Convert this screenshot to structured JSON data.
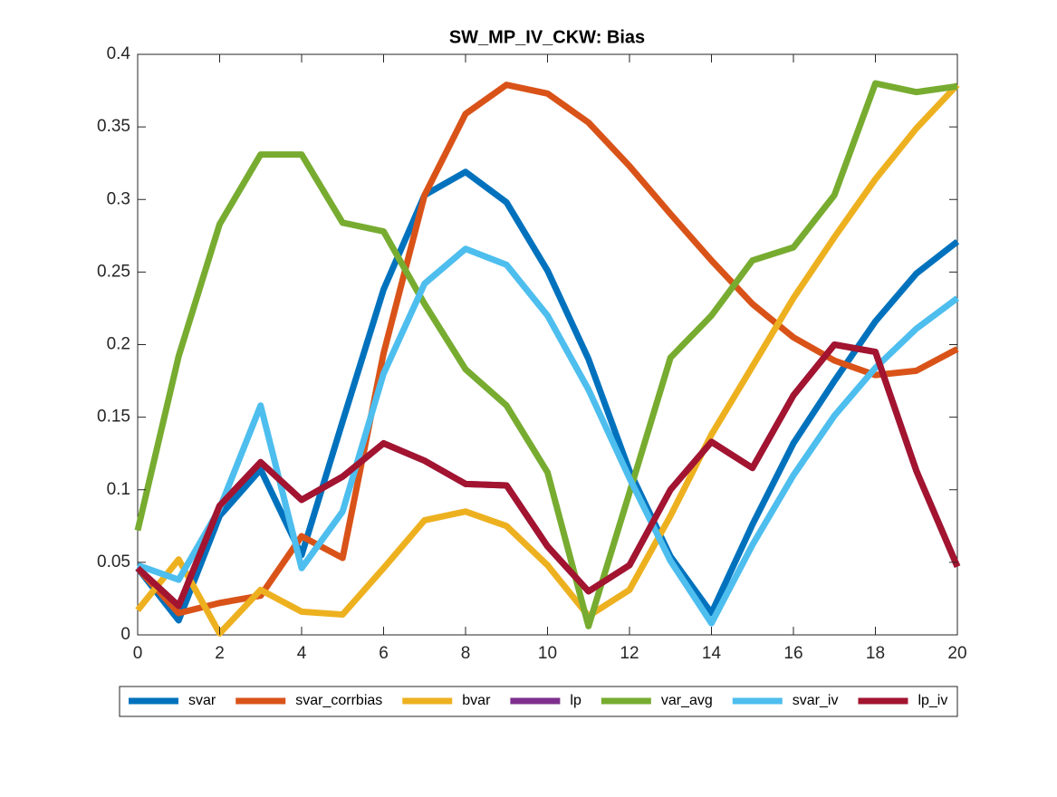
{
  "chart_data": {
    "type": "line",
    "title": "SW_MP_IV_CKW: Bias",
    "x": [
      0,
      1,
      2,
      3,
      4,
      5,
      6,
      7,
      8,
      9,
      10,
      11,
      12,
      13,
      14,
      15,
      16,
      17,
      18,
      19,
      20
    ],
    "xlim": [
      0,
      20
    ],
    "xticks": [
      0,
      2,
      4,
      6,
      8,
      10,
      12,
      14,
      16,
      18,
      20
    ],
    "ylim": [
      0,
      0.4
    ],
    "yticks": [
      0,
      0.05,
      0.1,
      0.15,
      0.2,
      0.25,
      0.3,
      0.35,
      0.4
    ],
    "grid": false,
    "legend": "bottom",
    "series": [
      {
        "name": "svar",
        "color": "#0072BD",
        "values": [
          0.046,
          0.01,
          0.082,
          0.114,
          0.055,
          0.147,
          0.238,
          0.303,
          0.319,
          0.298,
          0.251,
          0.19,
          0.113,
          0.054,
          0.015,
          0.076,
          0.132,
          0.175,
          0.216,
          0.249,
          0.271
        ]
      },
      {
        "name": "svar_corrbias",
        "color": "#D95319",
        "values": [
          0.046,
          0.015,
          0.022,
          0.027,
          0.068,
          0.053,
          0.194,
          0.303,
          0.359,
          0.379,
          0.373,
          0.353,
          0.323,
          0.29,
          0.258,
          0.228,
          0.205,
          0.189,
          0.179,
          0.182,
          0.197
        ]
      },
      {
        "name": "bvar",
        "color": "#EDB120",
        "values": [
          0.017,
          0.052,
          0.001,
          0.031,
          0.016,
          0.014,
          0.046,
          0.079,
          0.085,
          0.075,
          0.048,
          0.013,
          0.031,
          0.082,
          0.138,
          0.185,
          0.232,
          0.274,
          0.314,
          0.349,
          0.379
        ]
      },
      {
        "name": "lp",
        "color": "#7E2F8E",
        "values": [
          0.046,
          0.02,
          0.089,
          0.119,
          0.093,
          0.109,
          0.132,
          0.12,
          0.104,
          0.103,
          0.061,
          0.03,
          0.048,
          0.1,
          0.133,
          0.115,
          0.165,
          0.2,
          0.195,
          0.113,
          0.047
        ]
      },
      {
        "name": "var_avg",
        "color": "#77AC30",
        "values": [
          0.072,
          0.192,
          0.283,
          0.331,
          0.331,
          0.284,
          0.278,
          0.228,
          0.183,
          0.158,
          0.112,
          0.006,
          0.098,
          0.191,
          0.22,
          0.258,
          0.267,
          0.303,
          0.38,
          0.374,
          0.378
        ]
      },
      {
        "name": "svar_iv",
        "color": "#4DBEEE",
        "values": [
          0.048,
          0.038,
          0.087,
          0.158,
          0.046,
          0.085,
          0.18,
          0.242,
          0.266,
          0.255,
          0.22,
          0.169,
          0.108,
          0.051,
          0.008,
          0.062,
          0.11,
          0.151,
          0.184,
          0.211,
          0.232
        ]
      },
      {
        "name": "lp_iv",
        "color": "#A2142F",
        "values": [
          0.046,
          0.02,
          0.089,
          0.119,
          0.093,
          0.109,
          0.132,
          0.12,
          0.104,
          0.103,
          0.061,
          0.03,
          0.048,
          0.1,
          0.133,
          0.115,
          0.165,
          0.2,
          0.195,
          0.113,
          0.047
        ]
      }
    ]
  }
}
